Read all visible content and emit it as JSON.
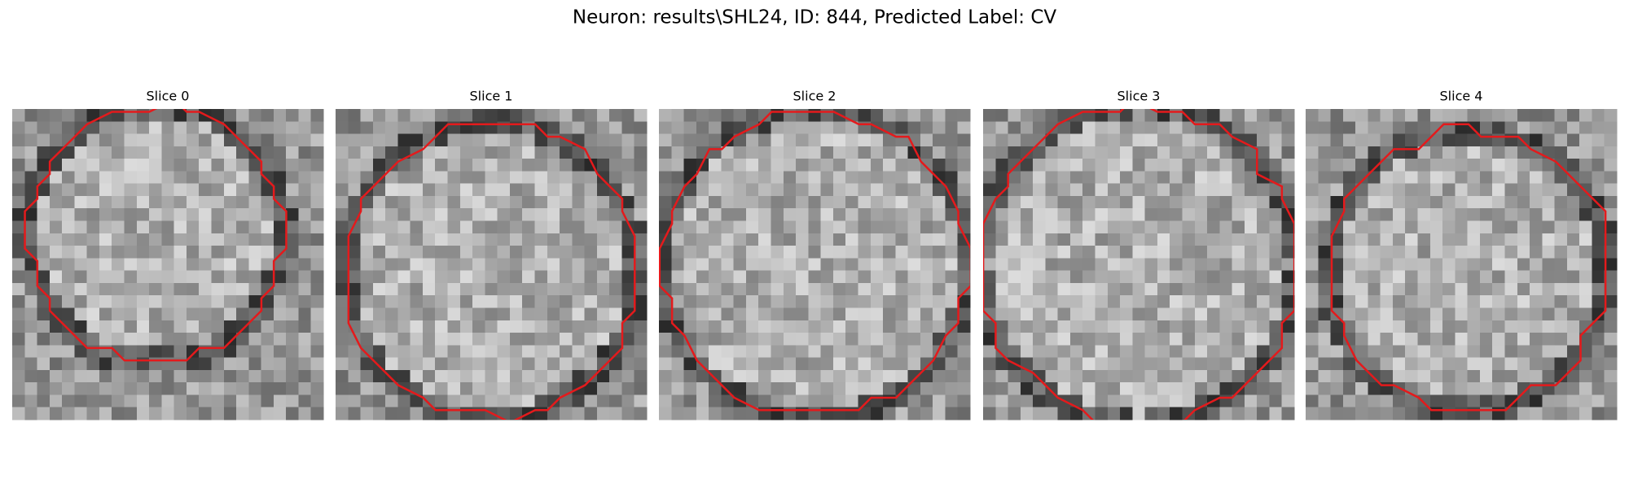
{
  "title": "Neuron: results\\SHL24, ID: 844, Predicted Label: CV",
  "panels": [
    {
      "title": "Slice 0"
    },
    {
      "title": "Slice 1"
    },
    {
      "title": "Slice 2"
    },
    {
      "title": "Slice 3"
    },
    {
      "title": "Slice 4"
    }
  ]
}
